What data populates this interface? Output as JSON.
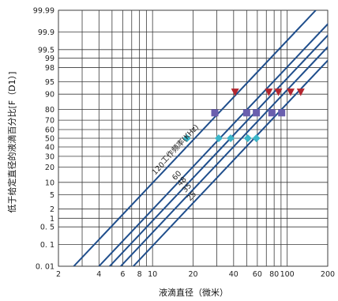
{
  "chart_data": {
    "type": "line",
    "title": "",
    "xlabel": "液滴直径（微米）",
    "ylabel": "低于给定直径的液滴百分比[F（D1）]",
    "x_scale": "log",
    "y_scale": "probability",
    "xlim": [
      2,
      200
    ],
    "ylim": [
      0.01,
      99.99
    ],
    "x_ticks": [
      2,
      4,
      6,
      8,
      10,
      20,
      40,
      60,
      80,
      100,
      200
    ],
    "x_tick_labels": [
      "2",
      "4",
      "6",
      "8",
      "10",
      "20",
      "40",
      "60",
      "80",
      "100",
      "200"
    ],
    "x_gridlines": [
      2,
      3,
      4,
      5,
      6,
      7,
      8,
      9,
      10,
      20,
      30,
      40,
      50,
      60,
      70,
      80,
      90,
      100,
      200
    ],
    "y_ticks": [
      0.01,
      0.1,
      0.5,
      1,
      2,
      5,
      10,
      20,
      30,
      40,
      50,
      60,
      70,
      80,
      90,
      95,
      98,
      99,
      99.5,
      99.9,
      99.99
    ],
    "y_tick_labels": [
      "0. 01",
      "0. 1",
      "0. 5",
      "1",
      "2",
      "5",
      "10",
      "20",
      "30",
      "40",
      "50",
      "60",
      "70",
      "80",
      "90",
      "95",
      "98",
      "99",
      "99.5",
      "99.9",
      "99.99"
    ],
    "grid": true,
    "series_title": "工作频率(KHz)",
    "series": [
      {
        "name": "120",
        "color": "#1f4e8c",
        "points": [
          [
            2.6,
            0.01
          ],
          [
            163,
            99.99
          ]
        ]
      },
      {
        "name": "60",
        "color": "#1f4e8c",
        "points": [
          [
            4,
            0.01
          ],
          [
            250,
            99.99
          ]
        ]
      },
      {
        "name": "48",
        "color": "#1f4e8c",
        "points": [
          [
            4.8,
            0.01
          ],
          [
            300,
            99.99
          ]
        ]
      },
      {
        "name": "35",
        "color": "#1f4e8c",
        "points": [
          [
            5.8,
            0.01
          ],
          [
            362,
            99.99
          ]
        ]
      },
      {
        "name": "25",
        "color": "#1f4e8c",
        "points": [
          [
            7.2,
            0.01
          ],
          [
            450,
            99.99
          ]
        ]
      }
    ],
    "markers": [
      {
        "shape": "diamond",
        "color": "#3bb6c9",
        "percent": 50,
        "x": [
          18,
          31,
          38,
          51,
          59
        ]
      },
      {
        "shape": "square",
        "color": "#6a5fae",
        "percent": 77,
        "x": [
          29,
          50,
          59,
          77,
          91
        ]
      },
      {
        "shape": "triangle-down",
        "color": "#b3262f",
        "percent": 91,
        "x": [
          41,
          73,
          86,
          106,
          126
        ]
      }
    ]
  }
}
